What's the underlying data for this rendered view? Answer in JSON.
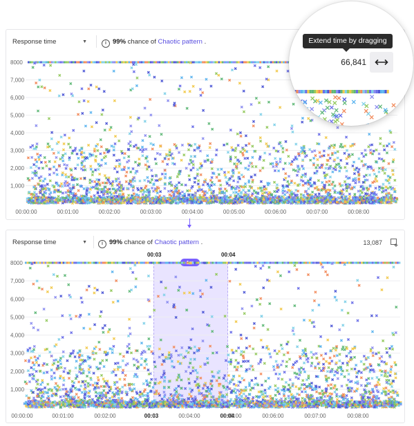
{
  "panel_top": {
    "metric_select": "Response time",
    "insight": {
      "pct": "99%",
      "text": "chance of",
      "pattern": "Chaotic pattern",
      "period": "."
    },
    "y_ticks": [
      "8000",
      "7,000",
      "6,000",
      "5,000",
      "4,000",
      "3,000",
      "2,000",
      "1,000"
    ],
    "x_ticks": [
      "00:00:00",
      "00:01:00",
      "00:02:00",
      "00:03:00",
      "00:04:00",
      "00:05:00",
      "00:06:00",
      "00:07:00",
      "00:08:00"
    ]
  },
  "magnifier": {
    "tooltip": "Extend time by dragging",
    "count": "66,841",
    "button_icon": "horizontal-resize-arrow-icon"
  },
  "panel_bottom": {
    "metric_select": "Response time",
    "insight": {
      "pct": "99%",
      "text": "chance of",
      "pattern": "Chaotic pattern",
      "period": "."
    },
    "count": "13,087",
    "add_icon": "add-to-panel-icon",
    "y_ticks": [
      "8000",
      "7,000",
      "6,000",
      "5,000",
      "4,000",
      "3,000",
      "2,000",
      "1,000"
    ],
    "x_ticks": [
      "00:00:00",
      "00:01:00",
      "00:02:00",
      "00:03",
      "00:04:00",
      "00:04",
      "00:05:00",
      "00:06:00",
      "00:07:00",
      "00:08:00"
    ],
    "selection": {
      "start": "00:03",
      "end": "00:04",
      "duration": "1m"
    }
  },
  "chart_data": [
    {
      "type": "scatter",
      "title": "",
      "ylabel": "Response time",
      "ylim": [
        0,
        8000
      ],
      "xlim": [
        "00:00:00",
        "00:09:00"
      ],
      "y_ticks": [
        1000,
        2000,
        3000,
        4000,
        5000,
        6000,
        7000,
        8000
      ],
      "x_ticks": [
        "00:00:00",
        "00:01:00",
        "00:02:00",
        "00:03:00",
        "00:04:00",
        "00:05:00",
        "00:06:00",
        "00:07:00",
        "00:08:00"
      ],
      "density_note": "dense points under 3,000; sparse up to 8,000",
      "grid": "horizontal",
      "colors": [
        "#6a6ee8",
        "#8a8cf0",
        "#5cb4ef",
        "#7fd0e8",
        "#5fb877",
        "#94c95e",
        "#f2c94c",
        "#f28b5c",
        "#4e58d6"
      ]
    },
    {
      "type": "scatter",
      "title": "",
      "ylabel": "Response time",
      "ylim": [
        0,
        8000
      ],
      "xlim": [
        "00:00:00",
        "00:09:00"
      ],
      "y_ticks": [
        1000,
        2000,
        3000,
        4000,
        5000,
        6000,
        7000,
        8000
      ],
      "selected_range": [
        "00:03",
        "00:04"
      ],
      "grid": "horizontal"
    }
  ],
  "colors": {
    "accent": "#7b61ff",
    "link": "#5a4fe0",
    "selection": "#c4b8ff",
    "tooltip_bg": "#2b2b2b"
  }
}
